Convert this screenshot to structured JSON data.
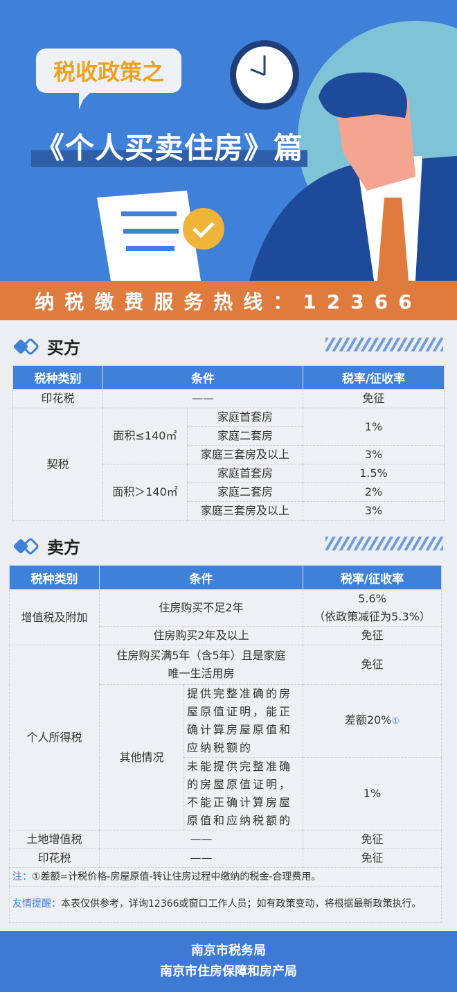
{
  "header": {
    "badge": "税收政策之",
    "title": "《个人买卖住房》篇",
    "hotline": "纳税缴费服务热线：12366"
  },
  "colors": {
    "primary": "#3f80d8",
    "accent": "#e07b3e",
    "badge_text": "#f0a01e"
  },
  "buyer": {
    "section_title": "买方",
    "headers": [
      "税种类别",
      "条件",
      "税率/征收率"
    ],
    "stamp": {
      "name": "印花税",
      "cond": "——",
      "rate": "免征"
    },
    "deed": {
      "name": "契税",
      "area_small": "面积≤140㎡",
      "area_large": "面积＞140㎡",
      "rows": [
        {
          "cond": "家庭首套房",
          "rate": "1%"
        },
        {
          "cond": "家庭二套房",
          "rate": ""
        },
        {
          "cond": "家庭三套房及以上",
          "rate": "3%"
        },
        {
          "cond": "家庭首套房",
          "rate": "1.5%"
        },
        {
          "cond": "家庭二套房",
          "rate": "2%"
        },
        {
          "cond": "家庭三套房及以上",
          "rate": "3%"
        }
      ]
    }
  },
  "seller": {
    "section_title": "卖方",
    "headers": [
      "税种类别",
      "条件",
      "税率/征收率"
    ],
    "vat": {
      "name": "增值税及附加",
      "c1": "住房购买不足2年",
      "r1a": "5.6%",
      "r1b": "（依政策减征为5.3%）",
      "c2": "住房购买2年及以上",
      "r2": "免征"
    },
    "iit": {
      "name": "个人所得税",
      "c1": "住房购买满5年（含5年）且是家庭唯一生活用房",
      "r1": "免征",
      "other": "其他情况",
      "c2": "提供完整准确的房屋原值证明，能正确计算房屋原值和应纳税额的",
      "r2": "差额20%",
      "r2_mark": "①",
      "c3": "未能提供完整准确的房屋原值证明，不能正确计算房屋原值和应纳税额的",
      "r3": "1%"
    },
    "land": {
      "name": "土地增值税",
      "cond": "——",
      "rate": "免征"
    },
    "stamp": {
      "name": "印花税",
      "cond": "——",
      "rate": "免征"
    },
    "note_label": "注：",
    "note": "①差额=计税价格-房屋原值-转让住房过程中缴纳的税金-合理费用。",
    "tip_label": "友情提醒：",
    "tip": "本表仅供参考，详询12366或窗口工作人员；如有政策变动，将根据最新政策执行。"
  },
  "footer": {
    "line1": "南京市税务局",
    "line2": "南京市住房保障和房产局"
  }
}
